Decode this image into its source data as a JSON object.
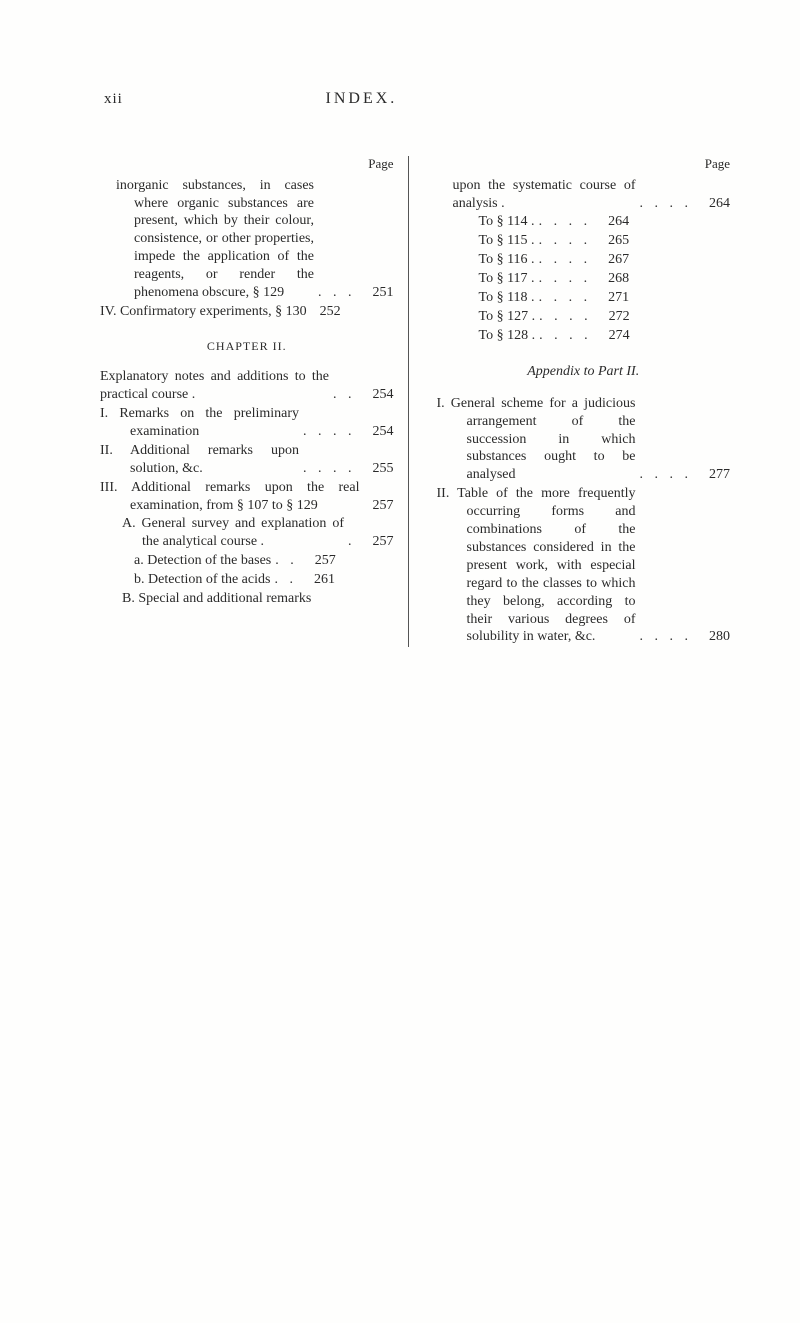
{
  "header": {
    "page_number_roman": "xii",
    "title": "INDEX."
  },
  "labels": {
    "page_word": "Page"
  },
  "left_column": {
    "entries_top": [
      {
        "text": "inorganic substances, in cases where organic substances are present, which by their colour, consistence, or other properties, impede the application of the reagents, or render the phenomena obscure, § 129",
        "dots": ". . .",
        "page": "251",
        "cls": "hang1"
      },
      {
        "text": "IV. Confirmatory experiments, § 130",
        "dots": "",
        "page": "252",
        "cls": "hang-roman"
      }
    ],
    "chapter_heading": "CHAPTER II.",
    "entries_bottom": [
      {
        "text": "Explanatory notes and additions to the practical course .",
        "dots": ". .",
        "page": "254",
        "cls": "hang0"
      },
      {
        "text": "I. Remarks on the preliminary examination",
        "dots": ". . . .",
        "page": "254",
        "cls": "hang-roman"
      },
      {
        "text": "II. Additional remarks upon solution, &c.",
        "dots": ". . . .",
        "page": "255",
        "cls": "hang-roman"
      },
      {
        "text": "III. Additional remarks upon the real examination, from § 107 to § 129",
        "dots": "",
        "page": "257",
        "cls": "hang-roman"
      },
      {
        "text": "A. General survey and explanation of the analytical course .",
        "dots": ".",
        "page": "257",
        "cls": "hang-sub"
      },
      {
        "text": "a. Detection of the bases",
        "dots": ". .",
        "page": "257",
        "cls": "hang-subsub"
      },
      {
        "text": "b. Detection of the acids",
        "dots": ". .",
        "page": "261",
        "cls": "hang-subsub"
      },
      {
        "text": "B. Special and additional remarks",
        "dots": "",
        "page": "",
        "cls": "hang-sub"
      }
    ]
  },
  "right_column": {
    "entries_top": [
      {
        "text": "upon the systematic course of analysis .",
        "dots": ". . . .",
        "page": "264",
        "cls": "no-indent"
      },
      {
        "text": "To § 114 .",
        "dots": ". . . .",
        "page": "264",
        "cls": "tosect"
      },
      {
        "text": "To § 115 .",
        "dots": ". . . .",
        "page": "265",
        "cls": "tosect"
      },
      {
        "text": "To § 116 .",
        "dots": ". . . .",
        "page": "267",
        "cls": "tosect"
      },
      {
        "text": "To § 117 .",
        "dots": ". . . .",
        "page": "268",
        "cls": "tosect"
      },
      {
        "text": "To § 118 .",
        "dots": ". . . .",
        "page": "271",
        "cls": "tosect"
      },
      {
        "text": "To § 127 .",
        "dots": ". . . .",
        "page": "272",
        "cls": "tosect"
      },
      {
        "text": "To § 128 .",
        "dots": ". . . .",
        "page": "274",
        "cls": "tosect"
      }
    ],
    "appendix_heading": "Appendix to Part II.",
    "entries_bottom": [
      {
        "text": "I. General scheme for a judicious arrangement of the succession in which substances ought to be analysed",
        "dots": ". . . .",
        "page": "277",
        "cls": "hang-roman"
      },
      {
        "text": "II. Table of the more frequently occurring forms and combinations of the substances considered in the present work, with especial regard to the classes to which they belong, according to their various degrees of solubility in water, &c.",
        "dots": ". . . .",
        "page": "280",
        "cls": "hang-roman"
      }
    ]
  }
}
